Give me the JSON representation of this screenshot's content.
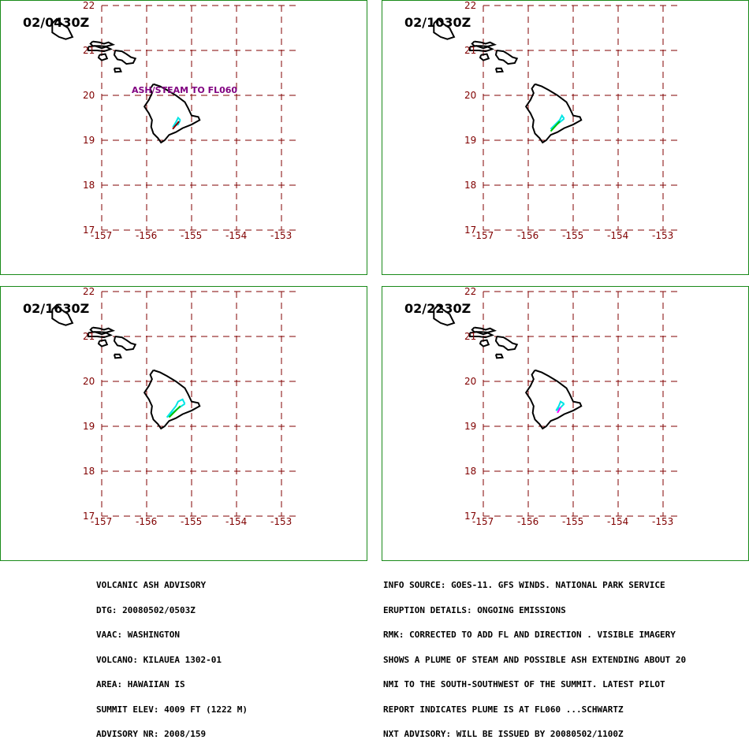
{
  "panels": [
    {
      "time": "02/0430Z",
      "annotation": "ASH/STEAM TO FL060"
    },
    {
      "time": "02/1030Z",
      "annotation": ""
    },
    {
      "time": "02/1630Z",
      "annotation": ""
    },
    {
      "time": "02/2230Z",
      "annotation": ""
    }
  ],
  "map": {
    "lat_labels": [
      "22",
      "21",
      "20",
      "19",
      "18",
      "17"
    ],
    "lon_labels": [
      "-157",
      "-156",
      "-155",
      "-154",
      "-153"
    ],
    "lat_range": [
      17,
      22
    ],
    "lon_range": [
      -157,
      -153
    ],
    "grid_color": "#800000",
    "coast_color": "#000000",
    "plume_colors": [
      "#00e5e5",
      "#00c000",
      "#ff00ff",
      "#800000"
    ]
  },
  "advisory_left": {
    "lines": [
      "VOLCANIC ASH ADVISORY",
      "DTG: 20080502/0503Z",
      "VAAC: WASHINGTON",
      "VOLCANO: KILAUEA 1302-01",
      "AREA: HAWAIIAN IS",
      "SUMMIT ELEV: 4009 FT (1222 M)",
      "ADVISORY NR: 2008/159"
    ]
  },
  "advisory_right": {
    "lines": [
      "INFO SOURCE: GOES-11. GFS WINDS. NATIONAL PARK SERVICE",
      "ERUPTION DETAILS: ONGOING EMISSIONS",
      "RMK: CORRECTED TO ADD FL AND DIRECTION . VISIBLE IMAGERY",
      "SHOWS A PLUME OF STEAM AND POSSIBLE ASH EXTENDING ABOUT 20",
      "NMI TO THE SOUTH-SOUTHWEST OF THE SUMMIT. LATEST PILOT",
      "REPORT INDICATES PLUME IS AT FL060 ...SCHWARTZ",
      "NXT ADVISORY: WILL BE ISSUED BY 20080502/1100Z"
    ]
  }
}
